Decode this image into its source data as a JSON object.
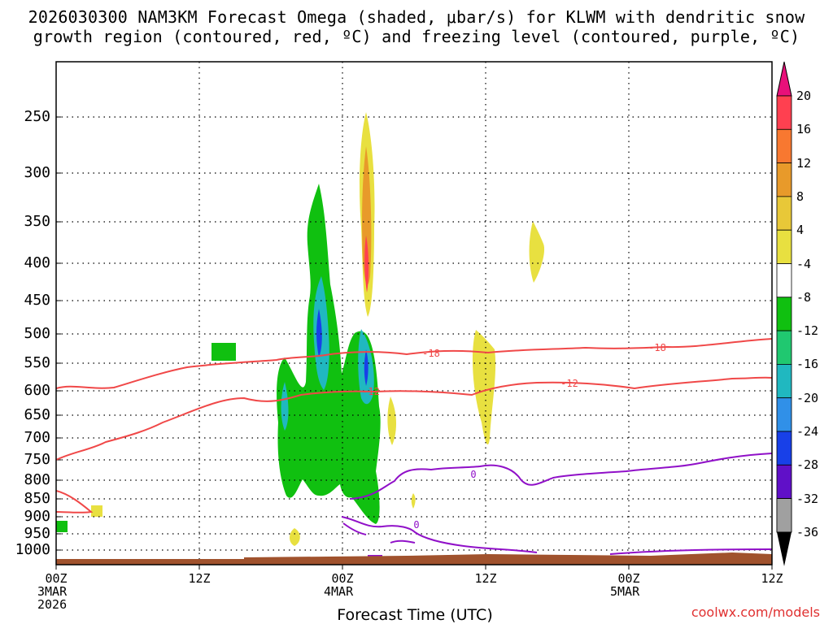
{
  "title": {
    "line1": "2026030300 NAM3KM Forecast Omega (shaded, μbar/s) for KLWM with dendritic snow",
    "line2": "growth region (contoured, red, ºC) and freezing level (contoured, purple, ºC)"
  },
  "footer": {
    "xlabel": "Forecast Time (UTC)",
    "credit": "coolwx.com/models"
  },
  "chart_data": {
    "type": "heatmap",
    "x_axis": {
      "label": "Forecast Time (UTC)",
      "unit": "forecast hour",
      "range": [
        0,
        60
      ],
      "ticks": [
        {
          "hour": 0,
          "label": "00Z",
          "sub1": "3MAR",
          "sub2": "2026"
        },
        {
          "hour": 12,
          "label": "12Z",
          "sub1": "",
          "sub2": ""
        },
        {
          "hour": 24,
          "label": "00Z",
          "sub1": "4MAR",
          "sub2": ""
        },
        {
          "hour": 36,
          "label": "12Z",
          "sub1": "",
          "sub2": ""
        },
        {
          "hour": 48,
          "label": "00Z",
          "sub1": "5MAR",
          "sub2": ""
        },
        {
          "hour": 60,
          "label": "12Z",
          "sub1": "",
          "sub2": ""
        }
      ]
    },
    "y_axis": {
      "label": "",
      "unit": "hPa",
      "inverted": true,
      "ticks": [
        250,
        300,
        350,
        400,
        450,
        500,
        550,
        600,
        650,
        700,
        750,
        800,
        850,
        900,
        950,
        1000
      ]
    },
    "grid": true,
    "colorbar": {
      "levels": [
        20,
        16,
        12,
        8,
        4,
        -4,
        -8,
        -12,
        -16,
        -20,
        -24,
        -28,
        -32,
        -36
      ],
      "colors": [
        "#ff4050",
        "#f87830",
        "#e89a2a",
        "#e8c838",
        "#e8e040",
        "#ffffff",
        "#10c010",
        "#20c870",
        "#20b8c0",
        "#3090e8",
        "#1840e8",
        "#6010c8",
        "#9010c8",
        "#a0a0a0"
      ],
      "top_arrow_color": "#e8107a",
      "bottom_arrow_color": "#000000"
    },
    "contours": [
      {
        "name": "-18",
        "color": "#f04848",
        "label": "-18"
      },
      {
        "name": "-12",
        "color": "#f04848",
        "label": "-12"
      },
      {
        "name": "0",
        "color": "#9010c8",
        "label": "0"
      }
    ],
    "terrain_color": "#a0522d"
  }
}
